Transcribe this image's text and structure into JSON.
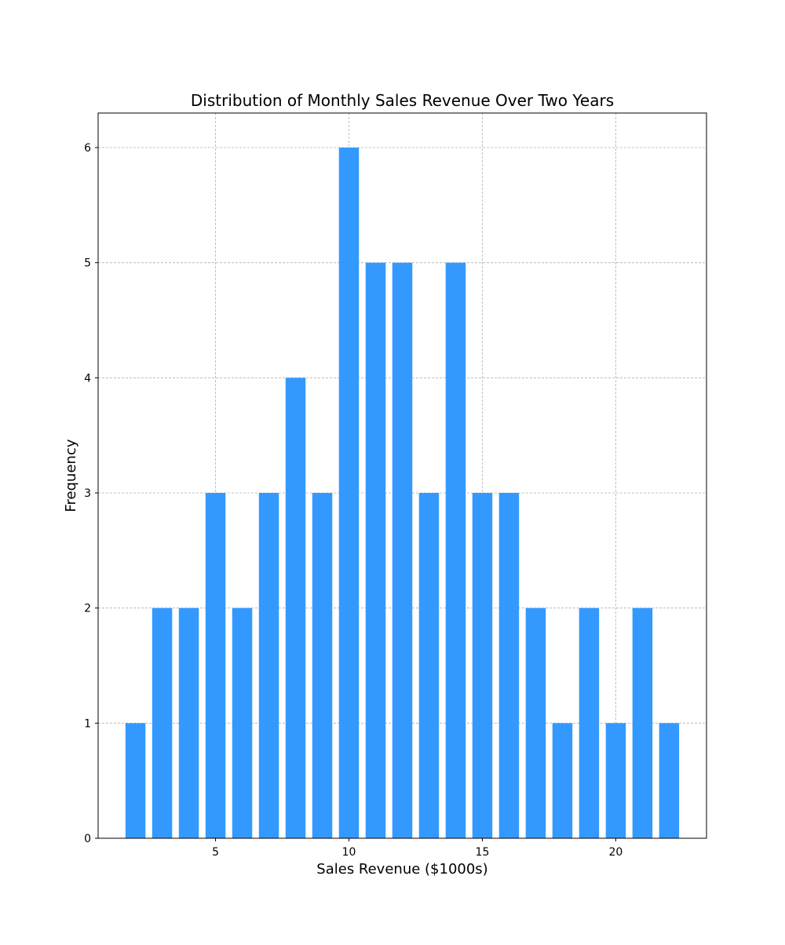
{
  "chart_data": {
    "type": "bar",
    "title": "Distribution of Monthly Sales Revenue Over Two Years",
    "xlabel": "Sales Revenue ($1000s)",
    "ylabel": "Frequency",
    "x": [
      2,
      3,
      4,
      5,
      6,
      7,
      8,
      9,
      10,
      11,
      12,
      13,
      14,
      15,
      16,
      17,
      18,
      19,
      20,
      21,
      22
    ],
    "values": [
      1,
      2,
      2,
      3,
      2,
      3,
      4,
      3,
      6,
      5,
      5,
      3,
      5,
      3,
      3,
      2,
      1,
      2,
      1,
      2,
      1
    ],
    "xlim": [
      0.6,
      23.4
    ],
    "ylim": [
      0,
      6.3
    ],
    "xticks": [
      5,
      10,
      15,
      20
    ],
    "yticks": [
      0,
      1,
      2,
      3,
      4,
      5,
      6
    ],
    "bar_color": "#3399ff",
    "grid": true,
    "legend": "none"
  }
}
